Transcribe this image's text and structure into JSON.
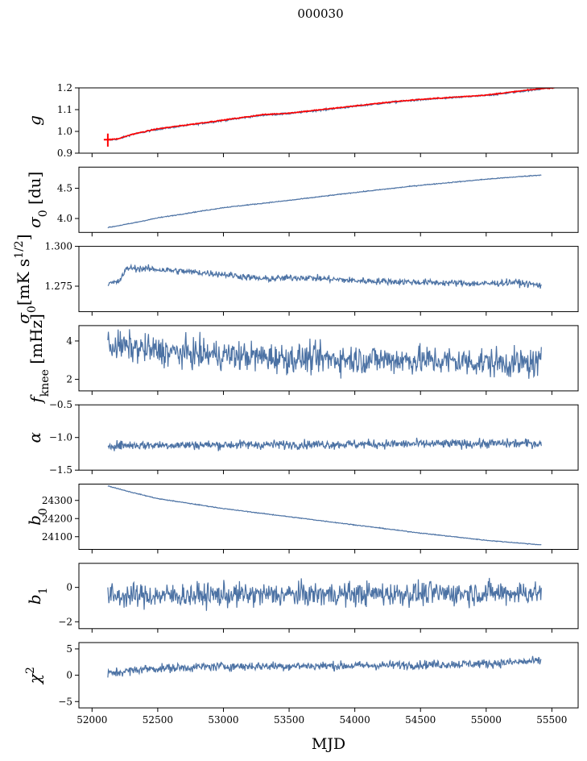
{
  "figure": {
    "title": "000030",
    "xlabel": "MJD"
  },
  "colors": {
    "series": "#4c72a4",
    "overlay": "#ff0000",
    "frame": "#000000"
  },
  "chart_data": [
    {
      "type": "line",
      "ylabel": "g",
      "x_range": [
        52120,
        55420
      ],
      "xlim": [
        51900,
        55700
      ],
      "ylim": [
        0.9,
        1.2
      ],
      "yticks": [
        0.9,
        1.0,
        1.1,
        1.2
      ],
      "ytick_labels": [
        "0.9",
        "1.0",
        "1.1",
        "1.2"
      ],
      "trend": [
        [
          52120,
          0.96
        ],
        [
          52200,
          0.965
        ],
        [
          52300,
          0.985
        ],
        [
          52500,
          1.01
        ],
        [
          53000,
          1.05
        ],
        [
          53300,
          1.075
        ],
        [
          53500,
          1.082
        ],
        [
          54000,
          1.115
        ],
        [
          54300,
          1.135
        ],
        [
          54500,
          1.145
        ],
        [
          55000,
          1.165
        ],
        [
          55420,
          1.195
        ]
      ],
      "noise": 0.003,
      "overlay": {
        "color": "#ff0000",
        "label": "",
        "trend": [
          [
            52120,
            0.962
          ],
          [
            52200,
            0.966
          ],
          [
            52300,
            0.986
          ],
          [
            52500,
            1.012
          ],
          [
            53000,
            1.052
          ],
          [
            53300,
            1.077
          ],
          [
            53500,
            1.084
          ],
          [
            54000,
            1.117
          ],
          [
            54300,
            1.137
          ],
          [
            54500,
            1.147
          ],
          [
            55000,
            1.167
          ],
          [
            55420,
            1.197
          ],
          [
            55520,
            1.2
          ]
        ]
      }
    },
    {
      "type": "line",
      "ylabel": "σ0 [du]",
      "ylabel_main": "σ",
      "ylabel_sub": "0",
      "ylabel_rest": " [du]",
      "x_range": [
        52120,
        55420
      ],
      "xlim": [
        51900,
        55700
      ],
      "ylim": [
        3.77,
        4.85
      ],
      "yticks": [
        4.0,
        4.5
      ],
      "ytick_labels": [
        "4.0",
        "4.5"
      ],
      "trend": [
        [
          52120,
          3.85
        ],
        [
          52300,
          3.92
        ],
        [
          52500,
          4.01
        ],
        [
          53000,
          4.18
        ],
        [
          53500,
          4.3
        ],
        [
          54000,
          4.43
        ],
        [
          54500,
          4.55
        ],
        [
          55000,
          4.65
        ],
        [
          55420,
          4.72
        ]
      ],
      "noise": 0.005
    },
    {
      "type": "line",
      "ylabel": "σ0[mK s1/2]",
      "ylabel_main": "σ",
      "ylabel_sub": "0",
      "ylabel_rest": "[mK s",
      "ylabel_sup": "1/2",
      "ylabel_end": "]",
      "x_range": [
        52120,
        55420
      ],
      "xlim": [
        51900,
        55700
      ],
      "ylim": [
        1.259,
        1.3
      ],
      "yticks": [
        1.275,
        1.3
      ],
      "ytick_labels": [
        "1.275",
        "1.300"
      ],
      "trend": [
        [
          52120,
          1.2765
        ],
        [
          52200,
          1.2775
        ],
        [
          52270,
          1.2865
        ],
        [
          52500,
          1.2855
        ],
        [
          53000,
          1.2825
        ],
        [
          53300,
          1.2795
        ],
        [
          53600,
          1.2805
        ],
        [
          54000,
          1.2785
        ],
        [
          54500,
          1.2775
        ],
        [
          55000,
          1.2765
        ],
        [
          55200,
          1.2775
        ],
        [
          55420,
          1.2755
        ]
      ],
      "noise": 0.0015
    },
    {
      "type": "line",
      "ylabel": "fknee [mHz]",
      "ylabel_main": "f",
      "ylabel_sub": "knee",
      "ylabel_rest": " [mHz]",
      "x_range": [
        52120,
        55420
      ],
      "xlim": [
        51900,
        55700
      ],
      "ylim": [
        1.4,
        4.8
      ],
      "yticks": [
        2,
        4
      ],
      "ytick_labels": [
        "2",
        "4"
      ],
      "trend": [
        [
          52120,
          3.8
        ],
        [
          52600,
          3.4
        ],
        [
          53500,
          3.1
        ],
        [
          54500,
          3.0
        ],
        [
          55420,
          2.8
        ]
      ],
      "noise": 0.55
    },
    {
      "type": "line",
      "ylabel": "α",
      "x_range": [
        52120,
        55420
      ],
      "xlim": [
        51900,
        55700
      ],
      "ylim": [
        -1.5,
        -0.5
      ],
      "yticks": [
        -1.5,
        -1.0,
        -0.5
      ],
      "ytick_labels": [
        "−1.5",
        "−1.0",
        "−0.5"
      ],
      "trend": [
        [
          52120,
          -1.12
        ],
        [
          55420,
          -1.09
        ]
      ],
      "noise": 0.05
    },
    {
      "type": "line",
      "ylabel": "b0",
      "ylabel_main": "b",
      "ylabel_sub": "0",
      "x_range": [
        52120,
        55420
      ],
      "xlim": [
        51900,
        55700
      ],
      "ylim": [
        24030,
        24390
      ],
      "yticks": [
        24100,
        24200,
        24300
      ],
      "ytick_labels": [
        "24100",
        "24200",
        "24300"
      ],
      "trend": [
        [
          52120,
          24380
        ],
        [
          52300,
          24345
        ],
        [
          52500,
          24310
        ],
        [
          53000,
          24255
        ],
        [
          53500,
          24210
        ],
        [
          54000,
          24165
        ],
        [
          54500,
          24120
        ],
        [
          55000,
          24080
        ],
        [
          55420,
          24055
        ]
      ],
      "noise": 1.5
    },
    {
      "type": "line",
      "ylabel": "b1",
      "ylabel_main": "b",
      "ylabel_sub": "1",
      "x_range": [
        52120,
        55420
      ],
      "xlim": [
        51900,
        55700
      ],
      "ylim": [
        -2.4,
        1.4
      ],
      "yticks": [
        -2,
        0
      ],
      "ytick_labels": [
        "−2",
        "0"
      ],
      "trend": [
        [
          52120,
          -0.5
        ],
        [
          55420,
          -0.3
        ]
      ],
      "noise": 0.5
    },
    {
      "type": "line",
      "ylabel": "χ2",
      "ylabel_main": "χ",
      "ylabel_sup": "2",
      "x_range": [
        52120,
        55420
      ],
      "xlim": [
        51900,
        55700
      ],
      "ylim": [
        -6.2,
        6.2
      ],
      "yticks": [
        -5,
        0,
        5
      ],
      "ytick_labels": [
        "−5",
        "0",
        "5"
      ],
      "xticks": [
        52000,
        52500,
        53000,
        53500,
        54000,
        54500,
        55000,
        55500
      ],
      "xtick_labels": [
        "52000",
        "52500",
        "53000",
        "53500",
        "54000",
        "54500",
        "55000",
        "55500"
      ],
      "trend": [
        [
          52120,
          0.3
        ],
        [
          52400,
          1.2
        ],
        [
          53000,
          1.7
        ],
        [
          54000,
          1.8
        ],
        [
          54500,
          2.0
        ],
        [
          55000,
          2.2
        ],
        [
          55420,
          2.7
        ]
      ],
      "noise": 0.6
    }
  ]
}
